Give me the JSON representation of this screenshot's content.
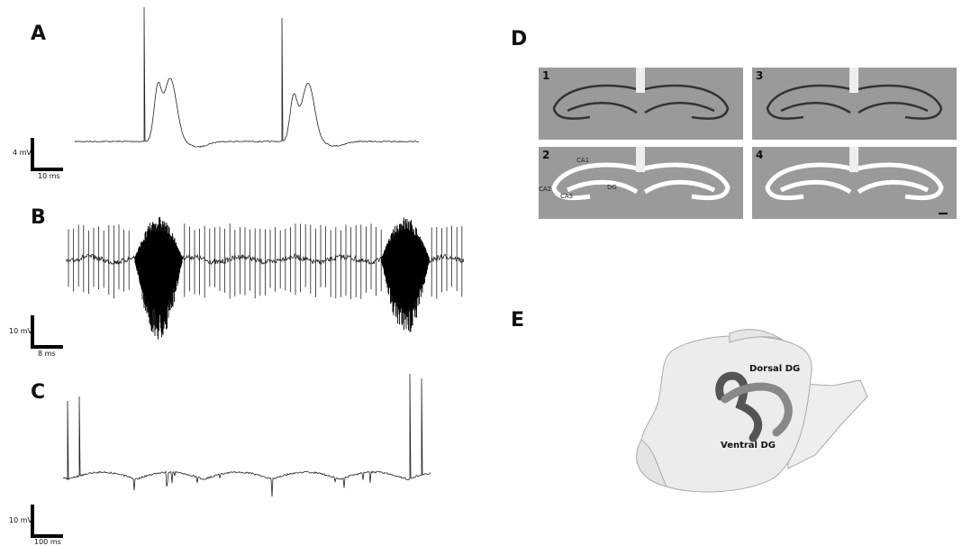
{
  "panels": {
    "A": {
      "label": "A",
      "scale_y": "4 mV",
      "scale_x": "10 ms"
    },
    "B": {
      "label": "B",
      "scale_y": "10 mV",
      "scale_x": "8 ms"
    },
    "C": {
      "label": "C",
      "scale_y": "10 mV",
      "scale_x": "100 ms"
    },
    "D": {
      "label": "D",
      "sections": [
        "1",
        "2",
        "3",
        "4"
      ],
      "regions": [
        "CA1",
        "CA2",
        "CA3",
        "DG"
      ]
    },
    "E": {
      "label": "E",
      "dorsal": "Dorsal DG",
      "ventral": "Ventral DG"
    }
  }
}
